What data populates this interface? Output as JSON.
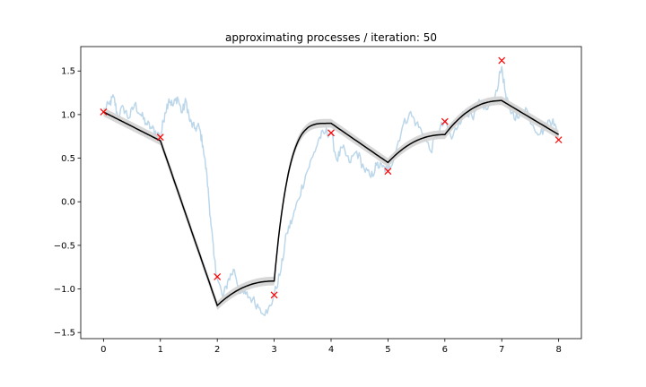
{
  "chart_data": {
    "type": "line",
    "title": "approximating processes / iteration: 50",
    "xlabel": "",
    "ylabel": "",
    "xlim": [
      -0.4,
      8.4
    ],
    "ylim": [
      -1.57,
      1.78
    ],
    "grid": false,
    "legend": "none",
    "xticks": [
      {
        "value": 0,
        "label": "0"
      },
      {
        "value": 1,
        "label": "1"
      },
      {
        "value": 2,
        "label": "2"
      },
      {
        "value": 3,
        "label": "3"
      },
      {
        "value": 4,
        "label": "4"
      },
      {
        "value": 5,
        "label": "5"
      },
      {
        "value": 6,
        "label": "6"
      },
      {
        "value": 7,
        "label": "7"
      },
      {
        "value": 8,
        "label": "8"
      }
    ],
    "yticks": [
      {
        "value": -1.5,
        "label": "−1.5"
      },
      {
        "value": -1.0,
        "label": "−1.0"
      },
      {
        "value": -0.5,
        "label": "−0.5"
      },
      {
        "value": 0.0,
        "label": "0.0"
      },
      {
        "value": 0.5,
        "label": "0.5"
      },
      {
        "value": 1.0,
        "label": "1.0"
      },
      {
        "value": 1.5,
        "label": "1.5"
      }
    ],
    "observations": {
      "marker": "x",
      "color": "#ff0000",
      "x": [
        0,
        1,
        2,
        3,
        4,
        5,
        6,
        7,
        8
      ],
      "y": [
        1.03,
        0.74,
        -0.86,
        -1.07,
        0.79,
        0.35,
        0.92,
        1.62,
        0.71
      ]
    },
    "approximation": {
      "color": "#000000",
      "band_color": "#d3d3d3",
      "band_halfwidth": 0.05,
      "segments": [
        {
          "x0": 0,
          "x1": 1,
          "y0": 1.03,
          "y1": 0.7,
          "shape": "linear"
        },
        {
          "x0": 1,
          "x1": 2,
          "y0": 0.7,
          "y1": -1.19,
          "shape": "linear"
        },
        {
          "x0": 2,
          "x1": 3,
          "y0": -1.19,
          "y1": -0.91,
          "shape": "concave"
        },
        {
          "x0": 3,
          "x1": 4,
          "y0": -0.91,
          "y1": 0.9,
          "shape": "concave-steep"
        },
        {
          "x0": 4,
          "x1": 5,
          "y0": 0.9,
          "y1": 0.45,
          "shape": "linear"
        },
        {
          "x0": 5,
          "x1": 6,
          "y0": 0.45,
          "y1": 0.77,
          "shape": "concave"
        },
        {
          "x0": 6,
          "x1": 7,
          "y0": 0.77,
          "y1": 1.16,
          "shape": "concave"
        },
        {
          "x0": 7,
          "x1": 8,
          "y0": 1.16,
          "y1": 0.77,
          "shape": "linear"
        }
      ]
    },
    "path": {
      "color": "#bcd7ea",
      "x_start": 0,
      "x_end": 8,
      "anchors": [
        [
          0.0,
          1.03
        ],
        [
          0.1,
          1.12
        ],
        [
          0.18,
          1.2
        ],
        [
          0.25,
          0.98
        ],
        [
          0.35,
          1.08
        ],
        [
          0.45,
          0.96
        ],
        [
          0.55,
          1.12
        ],
        [
          0.65,
          1.0
        ],
        [
          0.75,
          0.9
        ],
        [
          0.85,
          0.84
        ],
        [
          0.95,
          0.78
        ],
        [
          1.0,
          0.74
        ],
        [
          1.08,
          1.02
        ],
        [
          1.15,
          1.18
        ],
        [
          1.22,
          1.1
        ],
        [
          1.3,
          1.2
        ],
        [
          1.38,
          1.02
        ],
        [
          1.45,
          1.16
        ],
        [
          1.52,
          0.92
        ],
        [
          1.6,
          0.84
        ],
        [
          1.68,
          0.86
        ],
        [
          1.75,
          0.64
        ],
        [
          1.82,
          0.28
        ],
        [
          1.88,
          -0.18
        ],
        [
          1.94,
          -0.62
        ],
        [
          2.0,
          -0.88
        ],
        [
          2.1,
          -1.1
        ],
        [
          2.2,
          -0.88
        ],
        [
          2.3,
          -0.78
        ],
        [
          2.4,
          -1.05
        ],
        [
          2.5,
          -1.06
        ],
        [
          2.62,
          -1.12
        ],
        [
          2.75,
          -1.22
        ],
        [
          2.88,
          -1.28
        ],
        [
          3.0,
          -1.07
        ],
        [
          3.12,
          -0.78
        ],
        [
          3.22,
          -0.36
        ],
        [
          3.32,
          -0.2
        ],
        [
          3.42,
          0.02
        ],
        [
          3.55,
          0.3
        ],
        [
          3.68,
          0.52
        ],
        [
          3.8,
          0.74
        ],
        [
          3.9,
          0.8
        ],
        [
          4.0,
          0.79
        ],
        [
          4.1,
          0.48
        ],
        [
          4.2,
          0.62
        ],
        [
          4.32,
          0.45
        ],
        [
          4.45,
          0.58
        ],
        [
          4.58,
          0.38
        ],
        [
          4.7,
          0.28
        ],
        [
          4.8,
          0.42
        ],
        [
          4.9,
          0.4
        ],
        [
          5.0,
          0.35
        ],
        [
          5.12,
          0.55
        ],
        [
          5.25,
          0.85
        ],
        [
          5.38,
          1.02
        ],
        [
          5.5,
          0.9
        ],
        [
          5.62,
          0.78
        ],
        [
          5.75,
          0.58
        ],
        [
          5.88,
          0.8
        ],
        [
          6.0,
          0.92
        ],
        [
          6.12,
          0.72
        ],
        [
          6.25,
          0.92
        ],
        [
          6.38,
          1.06
        ],
        [
          6.5,
          0.94
        ],
        [
          6.62,
          1.15
        ],
        [
          6.75,
          1.06
        ],
        [
          6.88,
          1.2
        ],
        [
          7.0,
          1.55
        ],
        [
          7.08,
          1.16
        ],
        [
          7.18,
          1.02
        ],
        [
          7.3,
          0.96
        ],
        [
          7.42,
          1.08
        ],
        [
          7.55,
          0.88
        ],
        [
          7.68,
          0.78
        ],
        [
          7.8,
          0.9
        ],
        [
          7.9,
          0.95
        ],
        [
          8.0,
          0.71
        ]
      ]
    }
  }
}
